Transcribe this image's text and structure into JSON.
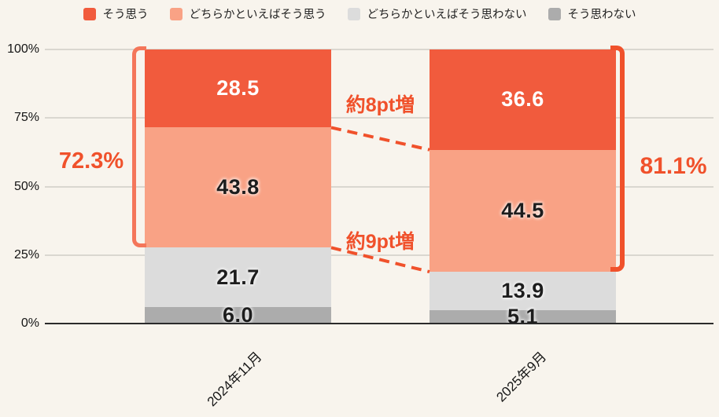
{
  "background": "#F8F4ED",
  "chart_data": {
    "type": "bar",
    "stacked": true,
    "orientation": "vertical",
    "categories": [
      "2024年11月",
      "2025年9月"
    ],
    "series": [
      {
        "name": "そう思う",
        "color": "#F15B3D",
        "label_style": "light",
        "values": [
          28.5,
          36.6
        ]
      },
      {
        "name": "どちらかといえばそう思う",
        "color": "#F9A285",
        "label_style": "dark",
        "values": [
          43.8,
          44.5
        ]
      },
      {
        "name": "どちらかといえばそう思わない",
        "color": "#DCDCDC",
        "label_style": "dark",
        "values": [
          21.7,
          13.9
        ]
      },
      {
        "name": "そう思わない",
        "color": "#ACACAC",
        "label_style": "dark",
        "values": [
          6.0,
          5.1
        ]
      }
    ],
    "y_ticks": [
      {
        "label": "0%",
        "value": 0
      },
      {
        "label": "25%",
        "value": 25
      },
      {
        "label": "50%",
        "value": 50
      },
      {
        "label": "75%",
        "value": 75
      },
      {
        "label": "100%",
        "value": 100
      }
    ],
    "ylim": [
      0,
      100
    ],
    "grid": true,
    "legend_position": "top",
    "annotations": {
      "left_total": "72.3%",
      "right_total": "81.1%",
      "left_total_sum_of": [
        "そう思う",
        "どちらかといえばそう思う"
      ],
      "diff_top": "約8pt増",
      "diff_bottom": "約9pt増",
      "accent_color": "#F0512B",
      "bracket_left_color": "#F4765A",
      "bracket_right_color": "#F0512B"
    }
  }
}
